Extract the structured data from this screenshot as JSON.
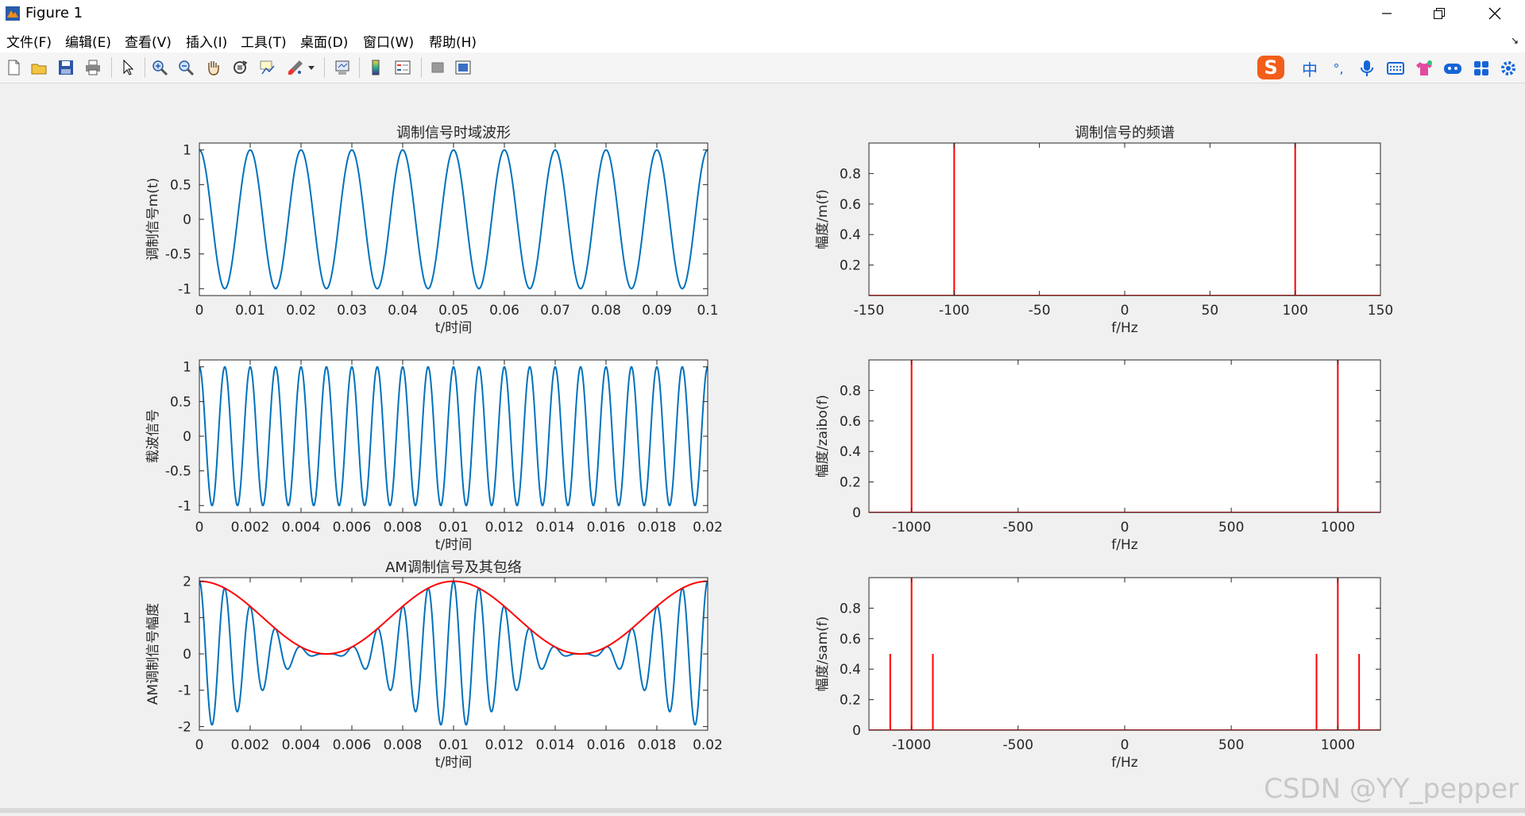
{
  "window": {
    "title": "Figure 1"
  },
  "menu": [
    "文件(F)",
    "编辑(E)",
    "查看(V)",
    "插入(I)",
    "工具(T)",
    "桌面(D)",
    "窗口(W)",
    "帮助(H)"
  ],
  "toolbar_icons": [
    "new-figure-icon",
    "open-file-icon",
    "save-icon",
    "print-icon",
    "select-arrow-icon",
    "zoom-in-icon",
    "zoom-out-icon",
    "pan-hand-icon",
    "rotate-3d-icon",
    "data-cursor-icon",
    "brush-icon",
    "brush-dropdown-icon",
    "link-plot-icon",
    "colorbar-icon",
    "legend-icon",
    "hide-plot-tools-icon",
    "show-plot-tools-icon"
  ],
  "ime_bar": {
    "logo": "S",
    "mode": "中",
    "punct": "°,"
  },
  "colors": {
    "blue": "#0072bd",
    "red": "#ff0000",
    "axes_bg": "#ffffff",
    "figure_bg": "#f0f0f0"
  },
  "chart_data": [
    {
      "id": "ax1",
      "type": "line",
      "title": "调制信号时域波形",
      "xlabel": "t/时间",
      "ylabel": "调制信号m(t)",
      "xlim": [
        0,
        0.1
      ],
      "ylim": [
        -1.1,
        1.1
      ],
      "xticks": [
        0,
        0.01,
        0.02,
        0.03,
        0.04,
        0.05,
        0.06,
        0.07,
        0.08,
        0.09,
        0.1
      ],
      "xticklabels": [
        "0",
        "0.01",
        "0.02",
        "0.03",
        "0.04",
        "0.05",
        "0.06",
        "0.07",
        "0.08",
        "0.09",
        "0.1"
      ],
      "yticks": [
        -1,
        -0.5,
        0,
        0.5,
        1
      ],
      "yticklabels": [
        "-1",
        "-0.5",
        "0",
        "0.5",
        "1"
      ],
      "series": [
        {
          "formula": "cos(2*pi*100*t)",
          "color": "#0072bd"
        }
      ]
    },
    {
      "id": "ax2",
      "type": "line",
      "title": "调制信号的频谱",
      "xlabel": "f/Hz",
      "ylabel": "幅度/m(f)",
      "xlim": [
        -150,
        150
      ],
      "ylim": [
        0,
        1
      ],
      "xticks": [
        -150,
        -100,
        -50,
        0,
        50,
        100,
        150
      ],
      "xticklabels": [
        "-150",
        "-100",
        "-50",
        "0",
        "50",
        "100",
        "150"
      ],
      "yticks": [
        0.2,
        0.4,
        0.6,
        0.8
      ],
      "yticklabels": [
        "0.2",
        "0.4",
        "0.6",
        "0.8"
      ],
      "series": [
        {
          "stems": [
            [
              -100,
              1.0
            ],
            [
              100,
              1.0
            ]
          ],
          "color": "#ff0000"
        }
      ]
    },
    {
      "id": "ax3",
      "type": "line",
      "title": "",
      "xlabel": "t/时间",
      "ylabel": "载波信号",
      "xlim": [
        0,
        0.02
      ],
      "ylim": [
        -1.1,
        1.1
      ],
      "xticks": [
        0,
        0.002,
        0.004,
        0.006,
        0.008,
        0.01,
        0.012,
        0.014,
        0.016,
        0.018,
        0.02
      ],
      "xticklabels": [
        "0",
        "0.002",
        "0.004",
        "0.006",
        "0.008",
        "0.01",
        "0.012",
        "0.014",
        "0.016",
        "0.018",
        "0.02"
      ],
      "yticks": [
        -1,
        -0.5,
        0,
        0.5,
        1
      ],
      "yticklabels": [
        "-1",
        "-0.5",
        "0",
        "0.5",
        "1"
      ],
      "series": [
        {
          "formula": "cos(2*pi*1000*t)",
          "color": "#0072bd"
        }
      ]
    },
    {
      "id": "ax4",
      "type": "line",
      "title": "",
      "xlabel": "f/Hz",
      "ylabel": "幅度/zaibo(f)",
      "xlim": [
        -1200,
        1200
      ],
      "ylim": [
        0,
        1
      ],
      "xticks": [
        -1000,
        -500,
        0,
        500,
        1000
      ],
      "xticklabels": [
        "-1000",
        "-500",
        "0",
        "500",
        "1000"
      ],
      "yticks": [
        0,
        0.2,
        0.4,
        0.6,
        0.8
      ],
      "yticklabels": [
        "0",
        "0.2",
        "0.4",
        "0.6",
        "0.8"
      ],
      "series": [
        {
          "stems": [
            [
              -1000,
              1.0
            ],
            [
              1000,
              1.0
            ]
          ],
          "color": "#ff0000"
        }
      ]
    },
    {
      "id": "ax5",
      "type": "line",
      "title": "AM调制信号及其包络",
      "xlabel": "t/时间",
      "ylabel": "AM调制信号幅度",
      "xlim": [
        0,
        0.02
      ],
      "ylim": [
        -2.1,
        2.1
      ],
      "xticks": [
        0,
        0.002,
        0.004,
        0.006,
        0.008,
        0.01,
        0.012,
        0.014,
        0.016,
        0.018,
        0.02
      ],
      "xticklabels": [
        "0",
        "0.002",
        "0.004",
        "0.006",
        "0.008",
        "0.01",
        "0.012",
        "0.014",
        "0.016",
        "0.018",
        "0.02"
      ],
      "yticks": [
        -2,
        -1,
        0,
        1,
        2
      ],
      "yticklabels": [
        "-2",
        "-1",
        "0",
        "1",
        "2"
      ],
      "series": [
        {
          "formula": "(1+cos(2*pi*100*t))*cos(2*pi*1000*t)",
          "color": "#0072bd"
        },
        {
          "formula": "1+cos(2*pi*100*t)",
          "color": "#ff0000"
        }
      ]
    },
    {
      "id": "ax6",
      "type": "line",
      "title": "",
      "xlabel": "f/Hz",
      "ylabel": "幅度/sam(f)",
      "xlim": [
        -1200,
        1200
      ],
      "ylim": [
        0,
        1
      ],
      "xticks": [
        -1000,
        -500,
        0,
        500,
        1000
      ],
      "xticklabels": [
        "-1000",
        "-500",
        "0",
        "500",
        "1000"
      ],
      "yticks": [
        0,
        0.2,
        0.4,
        0.6,
        0.8
      ],
      "yticklabels": [
        "0",
        "0.2",
        "0.4",
        "0.6",
        "0.8"
      ],
      "series": [
        {
          "stems": [
            [
              -1100,
              0.5
            ],
            [
              -1000,
              1.0
            ],
            [
              -900,
              0.5
            ],
            [
              900,
              0.5
            ],
            [
              1000,
              1.0
            ],
            [
              1100,
              0.5
            ]
          ],
          "color": "#ff0000"
        }
      ]
    }
  ],
  "watermark": "CSDN @YY_pepper"
}
